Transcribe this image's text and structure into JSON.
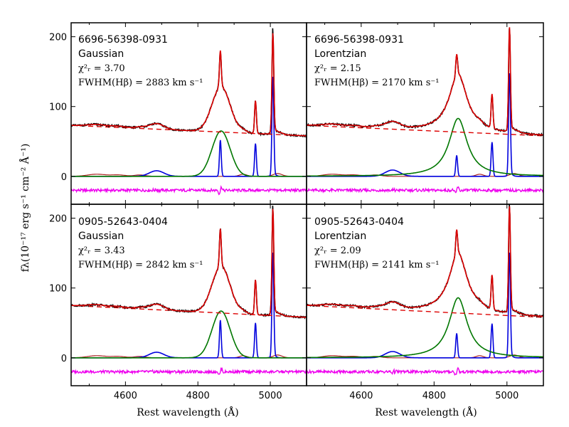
{
  "chart_data": {
    "type": "line",
    "xlabel": "Rest wavelength (Å)",
    "ylabel": "fλ(10⁻¹⁷ erg s⁻¹ cm⁻² Å⁻¹)",
    "xlim": [
      4450,
      5100
    ],
    "ylim": [
      -40,
      220
    ],
    "x_ticks": [
      4600,
      4800,
      5000
    ],
    "y_ticks": [
      0,
      100,
      200
    ],
    "colors": {
      "observed": "#000000",
      "total_model": "#dd0000",
      "continuum": "#dd0000",
      "broad_hbeta": "#007700",
      "narrow_lines": "#0000dd",
      "fe_template": "#aa2222",
      "residual": "#ee00ee"
    },
    "panels": [
      {
        "object_id": "6696-56398-0931",
        "profile": "Gaussian",
        "chi2_text": "χ²ᵣ = 3.70",
        "chi2": 3.7,
        "fwhm_text": "FWHM(Hβ) = 2883 km s⁻¹",
        "fwhm_kms": 2883,
        "continuum": [
          [
            4450,
            73
          ],
          [
            5100,
            58
          ]
        ],
        "hbeta_broad_peak": 65,
        "hbeta_narrow_peak": 52,
        "oiii_4959_peak": 47,
        "oiii_5007_peak": 140,
        "heii_peak": 8,
        "observed_max": 212,
        "residual_offset": -20
      },
      {
        "object_id": "6696-56398-0931",
        "profile": "Lorentzian",
        "chi2_text": "χ²ᵣ = 2.15",
        "chi2": 2.15,
        "fwhm_text": "FWHM(Hβ) = 2170 km s⁻¹",
        "fwhm_kms": 2170,
        "continuum": [
          [
            4450,
            73
          ],
          [
            5100,
            58
          ]
        ],
        "hbeta_broad_peak": 83,
        "hbeta_narrow_peak": 30,
        "oiii_4959_peak": 49,
        "oiii_5007_peak": 145,
        "heii_peak": 9,
        "observed_max": 212,
        "residual_offset": -20
      },
      {
        "object_id": "0905-52643-0404",
        "profile": "Gaussian",
        "chi2_text": "χ²ᵣ = 3.43",
        "chi2": 3.43,
        "fwhm_text": "FWHM(Hβ) = 2842 km s⁻¹",
        "fwhm_kms": 2842,
        "continuum": [
          [
            4450,
            75
          ],
          [
            5100,
            58
          ]
        ],
        "hbeta_broad_peak": 67,
        "hbeta_narrow_peak": 54,
        "oiii_4959_peak": 50,
        "oiii_5007_peak": 148,
        "heii_peak": 8,
        "observed_max": 218,
        "residual_offset": -20
      },
      {
        "object_id": "0905-52643-0404",
        "profile": "Lorentzian",
        "chi2_text": "χ²ᵣ = 2.09",
        "chi2": 2.09,
        "fwhm_text": "FWHM(Hβ) = 2141 km s⁻¹",
        "fwhm_kms": 2141,
        "continuum": [
          [
            4450,
            75
          ],
          [
            5100,
            58
          ]
        ],
        "hbeta_broad_peak": 86,
        "hbeta_narrow_peak": 35,
        "oiii_4959_peak": 49,
        "oiii_5007_peak": 148,
        "heii_peak": 9,
        "observed_max": 220,
        "residual_offset": -20
      }
    ]
  }
}
